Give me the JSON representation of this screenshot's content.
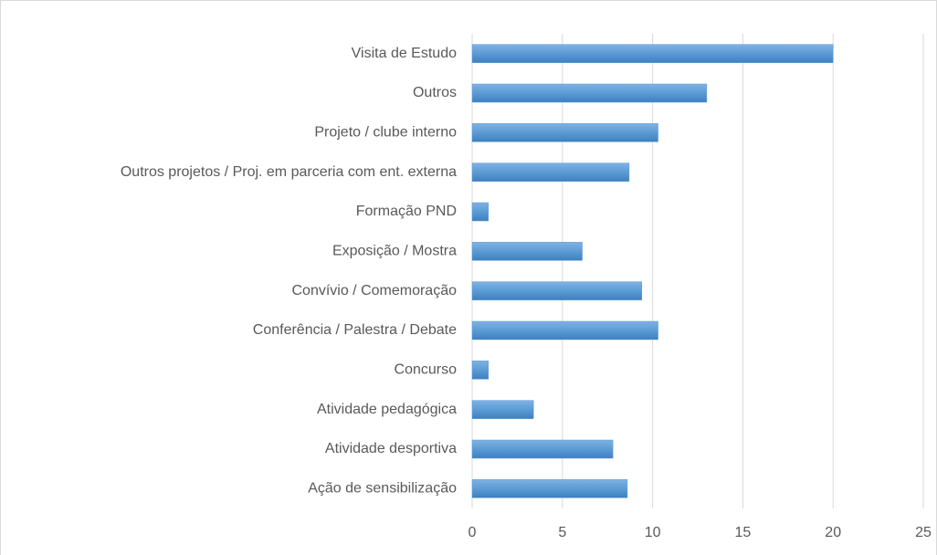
{
  "chart_data": {
    "type": "bar",
    "orientation": "horizontal",
    "categories": [
      "Visita de Estudo",
      "Outros",
      "Projeto / clube interno",
      "Outros projetos / Proj. em parceria com ent. externa",
      "Formação PND",
      "Exposição / Mostra",
      "Convívio / Comemoração",
      "Conferência  / Palestra / Debate",
      "Concurso",
      "Atividade pedagógica",
      "Atividade desportiva",
      "Ação de sensibilização"
    ],
    "values": [
      20,
      13,
      10.3,
      8.7,
      0.9,
      6.1,
      9.4,
      10.3,
      0.9,
      3.4,
      7.8,
      8.6
    ],
    "color": "#5b9bd5",
    "xlim": [
      0,
      25
    ],
    "xticks": [
      0,
      5,
      10,
      15,
      20,
      25
    ],
    "grid": true
  }
}
